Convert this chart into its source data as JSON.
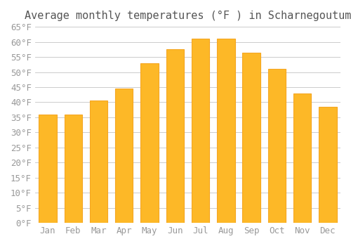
{
  "title": "Average monthly temperatures (°F ) in Scharnegoutum",
  "months": [
    "Jan",
    "Feb",
    "Mar",
    "Apr",
    "May",
    "Jun",
    "Jul",
    "Aug",
    "Sep",
    "Oct",
    "Nov",
    "Dec"
  ],
  "values": [
    36,
    36,
    40.5,
    44.5,
    53,
    57.5,
    61,
    61,
    56.5,
    51,
    43,
    38.5
  ],
  "bar_color": "#FDB827",
  "bar_edge_color": "#F5A623",
  "background_color": "#FFFFFF",
  "grid_color": "#CCCCCC",
  "text_color": "#999999",
  "ylim": [
    0,
    65
  ],
  "yticks": [
    0,
    5,
    10,
    15,
    20,
    25,
    30,
    35,
    40,
    45,
    50,
    55,
    60,
    65
  ],
  "title_fontsize": 11,
  "tick_fontsize": 9
}
